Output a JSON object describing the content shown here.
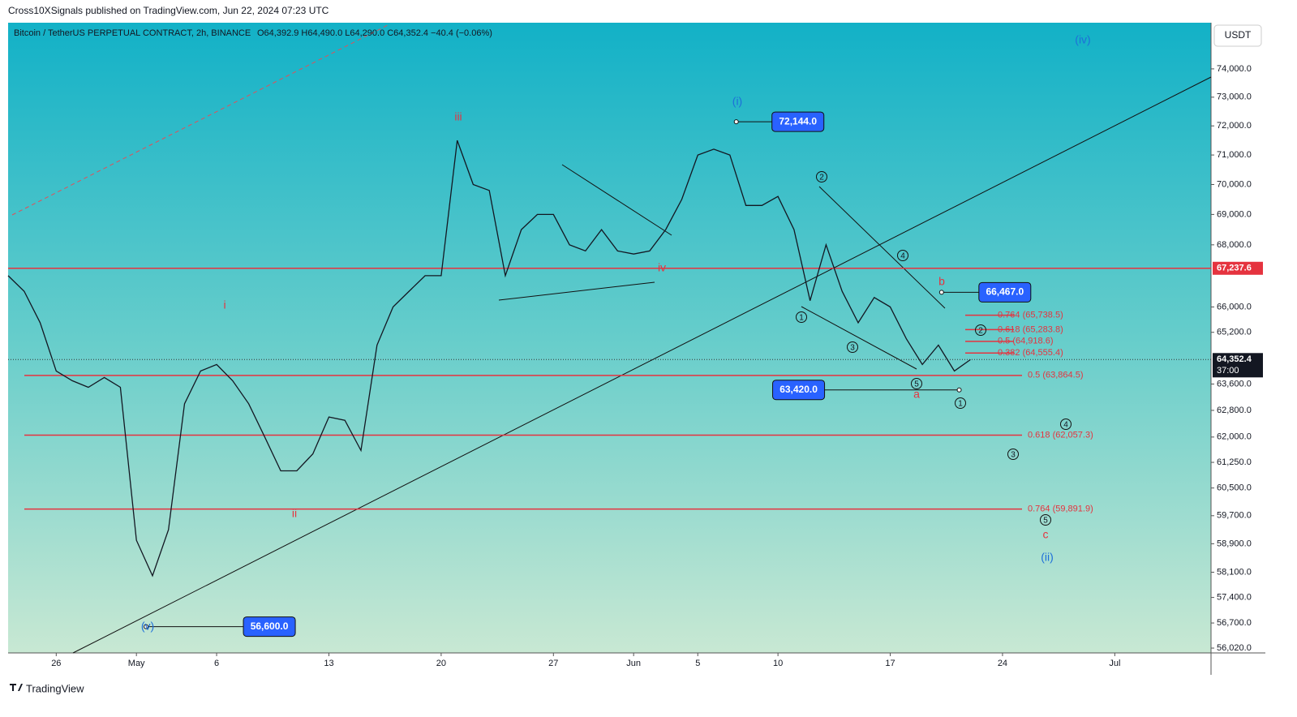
{
  "header": "Cross10XSignals published on TradingView.com, Jun 22, 2024 07:23 UTC",
  "footer": "TradingView",
  "currency_button": "USDT",
  "chart_data": {
    "type": "line",
    "title": "Bitcoin / TetherUS PERPETUAL CONTRACT, 2h, BINANCE",
    "ohlc_text": "O64,392.9 H64,490.0 L64,290.0 C64,352.4 −40.4 (−0.06%)",
    "log": true,
    "color": "#131722",
    "x": [
      -3,
      -2,
      -1,
      0,
      1,
      2,
      3,
      4,
      5,
      6,
      7,
      8,
      9,
      10,
      11,
      12,
      13,
      14,
      15,
      16,
      17,
      18,
      19,
      20,
      21,
      22,
      23,
      24,
      25,
      26,
      27,
      28,
      29,
      30,
      31,
      32,
      33,
      34,
      35,
      36,
      37,
      38,
      39,
      40,
      41,
      42,
      43,
      44,
      45,
      46,
      47,
      48,
      49,
      50,
      51,
      52,
      53,
      54,
      55,
      56,
      57
    ],
    "values": [
      67000,
      66500,
      65500,
      64000,
      63700,
      63500,
      63800,
      63500,
      59000,
      58000,
      59300,
      63000,
      64000,
      64200,
      63700,
      63000,
      62000,
      61000,
      61000,
      61500,
      62600,
      62500,
      61600,
      64800,
      66000,
      66500,
      67000,
      67000,
      71500,
      70000,
      69800,
      67000,
      68500,
      69000,
      69000,
      68000,
      67800,
      68500,
      67800,
      67700,
      67800,
      68500,
      69500,
      71000,
      71200,
      71000,
      69300,
      69300,
      69600,
      68500,
      66200,
      68000,
      66500,
      65500,
      66300,
      66000,
      65000,
      64200,
      64800,
      64000,
      64350
    ],
    "xlim": [
      -3,
      72
    ],
    "xticks": [
      {
        "value": 0,
        "label": "26"
      },
      {
        "value": 5,
        "label": "May"
      },
      {
        "value": 10,
        "label": "6"
      },
      {
        "value": 17,
        "label": "13"
      },
      {
        "value": 24,
        "label": "20"
      },
      {
        "value": 31,
        "label": "27"
      },
      {
        "value": 36,
        "label": "Jun"
      },
      {
        "value": 40,
        "label": "5"
      },
      {
        "value": 45,
        "label": "10"
      },
      {
        "value": 52,
        "label": "17"
      },
      {
        "value": 59,
        "label": "24"
      },
      {
        "value": 66,
        "label": "Jul"
      }
    ],
    "ylim": [
      55890,
      75660
    ],
    "yticks": [
      {
        "value": 74000,
        "label": "74,000.0"
      },
      {
        "value": 73000,
        "label": "73,000.0"
      },
      {
        "value": 72000,
        "label": "72,000.0"
      },
      {
        "value": 71000,
        "label": "71,000.0"
      },
      {
        "value": 70000,
        "label": "70,000.0"
      },
      {
        "value": 69000,
        "label": "69,000.0"
      },
      {
        "value": 68000,
        "label": "68,000.0"
      },
      {
        "value": 66000,
        "label": "66,000.0"
      },
      {
        "value": 65200,
        "label": "65,200.0"
      },
      {
        "value": 63600,
        "label": "63,600.0"
      },
      {
        "value": 62800,
        "label": "62,800.0"
      },
      {
        "value": 62000,
        "label": "62,000.0"
      },
      {
        "value": 61250,
        "label": "61,250.0"
      },
      {
        "value": 60500,
        "label": "60,500.0"
      },
      {
        "value": 59700,
        "label": "59,700.0"
      },
      {
        "value": 58900,
        "label": "58,900.0"
      },
      {
        "value": 58100,
        "label": "58,100.0"
      },
      {
        "value": 57400,
        "label": "57,400.0"
      },
      {
        "value": 56700,
        "label": "56,700.0"
      },
      {
        "value": 56020,
        "label": "56,020.0"
      }
    ],
    "level": {
      "value": 67237.6,
      "label": "67,237.6"
    },
    "last_price": {
      "value": 64352.4,
      "label": "64,352.4",
      "countdown": "37:00"
    },
    "fib_short": [
      {
        "value": 65738.5,
        "label": "0.764 (65,738.5)"
      },
      {
        "value": 65283.8,
        "label": "0.618 (65,283.8)"
      },
      {
        "value": 64918.6,
        "label": "0.5 (64,918.6)"
      },
      {
        "value": 64555.4,
        "label": "0.382 (64,555.4)"
      }
    ],
    "fib_long": [
      {
        "value": 63864.5,
        "label": "0.5 (63,864.5)"
      },
      {
        "value": 62057.3,
        "label": "0.618 (62,057.3)"
      },
      {
        "value": 59891.9,
        "label": "0.764 (59,891.9)"
      }
    ],
    "price_labels": [
      {
        "x": 42.4,
        "value": 72144,
        "label": "72,144.0"
      },
      {
        "x": 55.2,
        "value": 66467,
        "label": "66,467.0"
      },
      {
        "x": 56.3,
        "value": 63420,
        "label": "63,420.0"
      },
      {
        "x": 5.6,
        "value": 56600,
        "label": "56,600.0"
      }
    ],
    "wave_labels": [
      "(iv)",
      "(i)",
      "iii",
      "i",
      "ii",
      "iv",
      "b",
      "a",
      "c",
      "(ii)",
      "(v)"
    ],
    "circled_labels": [
      "2",
      "4",
      "1",
      "3",
      "5",
      "1",
      "2",
      "4",
      "3",
      "5"
    ]
  }
}
